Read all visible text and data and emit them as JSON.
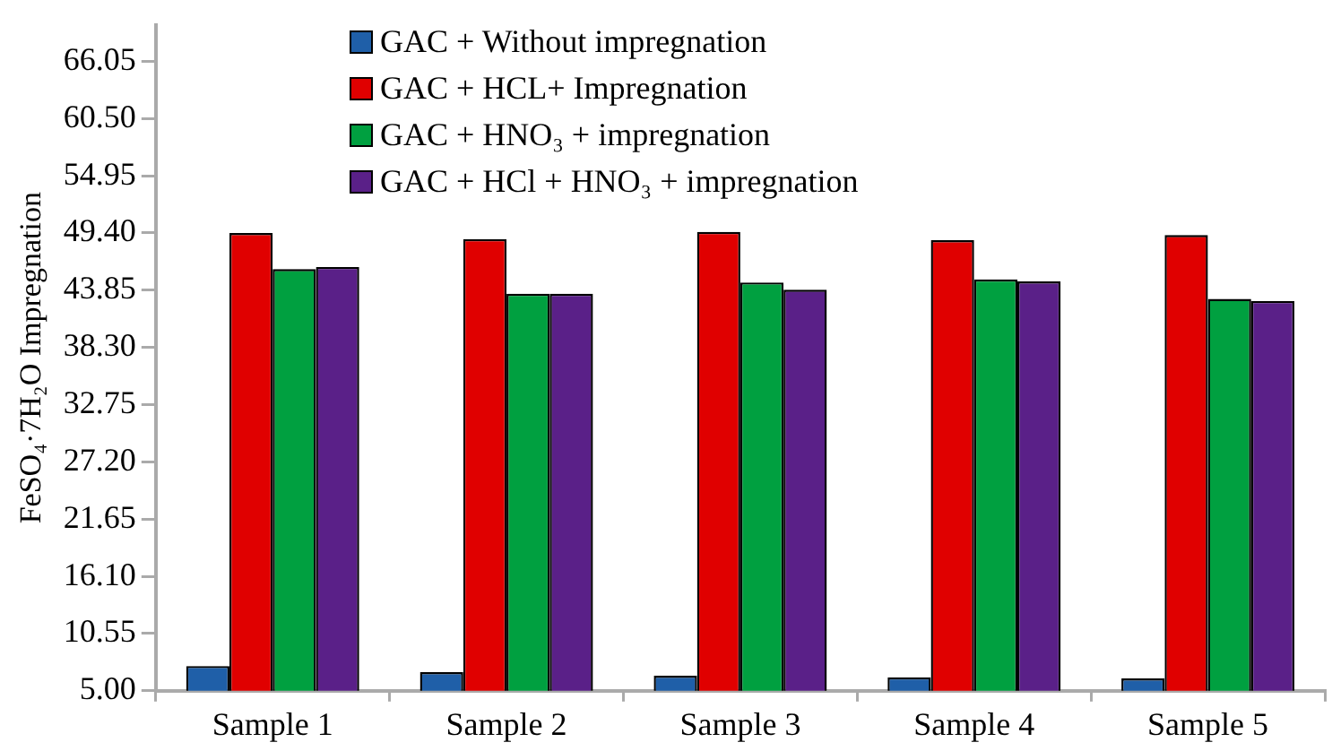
{
  "chart_data": {
    "type": "bar",
    "ylabel": "FeSO₄·7H₂O Impregnation",
    "categories": [
      "Sample 1",
      "Sample 2",
      "Sample 3",
      "Sample 4",
      "Sample 5"
    ],
    "series": [
      {
        "name": "GAC + Without impregnation",
        "color": "#1f5fa8",
        "values": [
          7.4,
          6.8,
          6.45,
          6.3,
          6.2
        ]
      },
      {
        "name": "GAC + HCL+ Impregnation",
        "color": "#e00000",
        "values": [
          49.4,
          48.8,
          49.5,
          48.7,
          49.2
        ]
      },
      {
        "name": "GAC + HNO₃ + impregnation",
        "color": "#00a040",
        "values": [
          45.9,
          43.5,
          44.6,
          44.9,
          43.0
        ]
      },
      {
        "name": "GAC + HCl + HNO₃ + impregnation",
        "color": "#5a2088",
        "values": [
          46.1,
          43.5,
          43.9,
          44.7,
          42.8
        ]
      }
    ],
    "ylim": [
      5.0,
      69.6
    ],
    "yticks": [
      {
        "value": 5.0,
        "label": "5.00"
      },
      {
        "value": 10.55,
        "label": "10.55"
      },
      {
        "value": 16.1,
        "label": "16.10"
      },
      {
        "value": 21.65,
        "label": "21.65"
      },
      {
        "value": 27.2,
        "label": "27.20"
      },
      {
        "value": 32.75,
        "label": "32.75"
      },
      {
        "value": 38.3,
        "label": "38.30"
      },
      {
        "value": 43.85,
        "label": "43.85"
      },
      {
        "value": 49.4,
        "label": "49.40"
      },
      {
        "value": 54.95,
        "label": "54.95"
      },
      {
        "value": 60.5,
        "label": "60.50"
      },
      {
        "value": 66.05,
        "label": "66.05"
      }
    ],
    "grid": false,
    "legend": "top"
  }
}
